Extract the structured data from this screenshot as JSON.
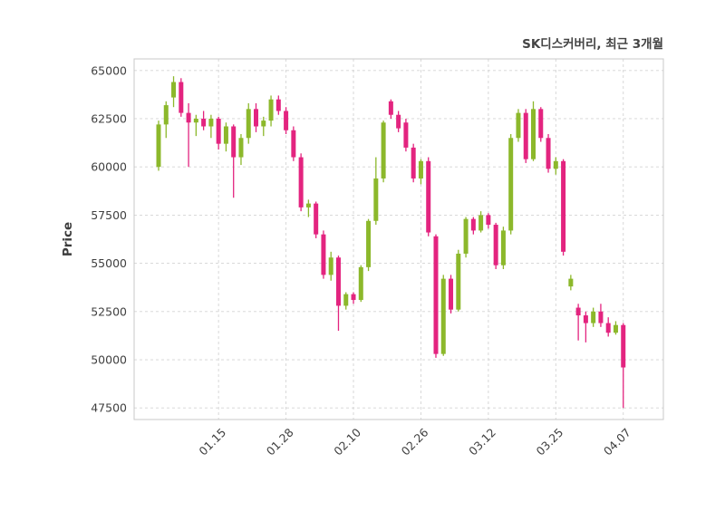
{
  "chart_data": {
    "type": "candlestick",
    "title": "SK디스커버리, 최근 3개월",
    "ylabel": "Price",
    "xlabel": "",
    "y_ticks": [
      47500,
      50000,
      52500,
      55000,
      57500,
      60000,
      62500,
      65000
    ],
    "ylim": [
      46900,
      65600
    ],
    "x_tick_labels": [
      "01.15",
      "01.28",
      "02.10",
      "02.26",
      "03.12",
      "03.25",
      "04.07"
    ],
    "x_tick_indices": [
      8,
      17,
      26,
      35,
      44,
      53,
      62
    ],
    "grid": "dashed-both-axes",
    "legend": "none",
    "up_color": "#8cb82b",
    "down_color": "#e3247f",
    "grid_color": "#d4d4d4",
    "spine_color": "#c8c8c8",
    "text_color": "#404040",
    "background": "#ffffff",
    "candles_format": [
      "open",
      "high",
      "low",
      "close"
    ],
    "candles": [
      [
        60000,
        62400,
        59800,
        62200
      ],
      [
        62200,
        63400,
        61500,
        63200
      ],
      [
        63600,
        64700,
        63100,
        64400
      ],
      [
        64400,
        64600,
        62600,
        62800
      ],
      [
        62800,
        63300,
        60000,
        62300
      ],
      [
        62300,
        62700,
        61600,
        62500
      ],
      [
        62500,
        62900,
        61900,
        62100
      ],
      [
        62100,
        62700,
        61500,
        62500
      ],
      [
        62500,
        62600,
        60900,
        61200
      ],
      [
        61200,
        62300,
        60800,
        62100
      ],
      [
        62100,
        62200,
        58400,
        60500
      ],
      [
        60500,
        61700,
        60100,
        61500
      ],
      [
        61500,
        63300,
        61200,
        63000
      ],
      [
        63000,
        63300,
        61800,
        62100
      ],
      [
        62100,
        62600,
        61600,
        62400
      ],
      [
        62400,
        63700,
        62100,
        63500
      ],
      [
        63500,
        63700,
        62700,
        62900
      ],
      [
        62900,
        63100,
        61700,
        61900
      ],
      [
        61900,
        62100,
        60300,
        60500
      ],
      [
        60500,
        60700,
        57700,
        57900
      ],
      [
        57900,
        58300,
        57400,
        58100
      ],
      [
        58100,
        58200,
        56300,
        56500
      ],
      [
        56500,
        56700,
        54200,
        54400
      ],
      [
        54400,
        55600,
        54100,
        55300
      ],
      [
        55300,
        55400,
        51500,
        52800
      ],
      [
        52800,
        53500,
        52600,
        53400
      ],
      [
        53400,
        53500,
        52900,
        53100
      ],
      [
        53100,
        54900,
        53000,
        54800
      ],
      [
        54800,
        57300,
        54600,
        57200
      ],
      [
        57200,
        60500,
        57000,
        59400
      ],
      [
        59400,
        62400,
        59200,
        62300
      ],
      [
        63400,
        63500,
        62500,
        62700
      ],
      [
        62700,
        62900,
        61800,
        62000
      ],
      [
        62300,
        62500,
        60800,
        61000
      ],
      [
        61000,
        61200,
        59200,
        59400
      ],
      [
        59400,
        60400,
        59100,
        60300
      ],
      [
        60300,
        60500,
        56400,
        56600
      ],
      [
        56400,
        56500,
        50100,
        50300
      ],
      [
        50300,
        54400,
        50200,
        54200
      ],
      [
        54200,
        54400,
        52400,
        52600
      ],
      [
        52600,
        55700,
        52500,
        55500
      ],
      [
        55500,
        57400,
        55300,
        57300
      ],
      [
        57300,
        57400,
        56500,
        56700
      ],
      [
        56700,
        57700,
        56600,
        57500
      ],
      [
        57500,
        57600,
        56800,
        57000
      ],
      [
        57000,
        57100,
        54700,
        54900
      ],
      [
        54900,
        56900,
        54700,
        56700
      ],
      [
        56700,
        61700,
        56500,
        61500
      ],
      [
        61500,
        63000,
        61300,
        62800
      ],
      [
        62800,
        63000,
        60200,
        60400
      ],
      [
        60400,
        63400,
        60300,
        63000
      ],
      [
        63000,
        63100,
        61300,
        61500
      ],
      [
        61500,
        61700,
        59700,
        59900
      ],
      [
        59900,
        60500,
        59600,
        60300
      ],
      [
        60300,
        60400,
        55400,
        55600
      ],
      [
        53800,
        54400,
        53600,
        54200
      ],
      [
        52700,
        52900,
        51000,
        52300
      ],
      [
        52300,
        52500,
        50900,
        51900
      ],
      [
        51900,
        52700,
        51700,
        52500
      ],
      [
        52500,
        52900,
        51700,
        51900
      ],
      [
        51900,
        52200,
        51200,
        51400
      ],
      [
        51400,
        52000,
        51300,
        51800
      ],
      [
        51800,
        51900,
        47500,
        49600
      ]
    ]
  }
}
